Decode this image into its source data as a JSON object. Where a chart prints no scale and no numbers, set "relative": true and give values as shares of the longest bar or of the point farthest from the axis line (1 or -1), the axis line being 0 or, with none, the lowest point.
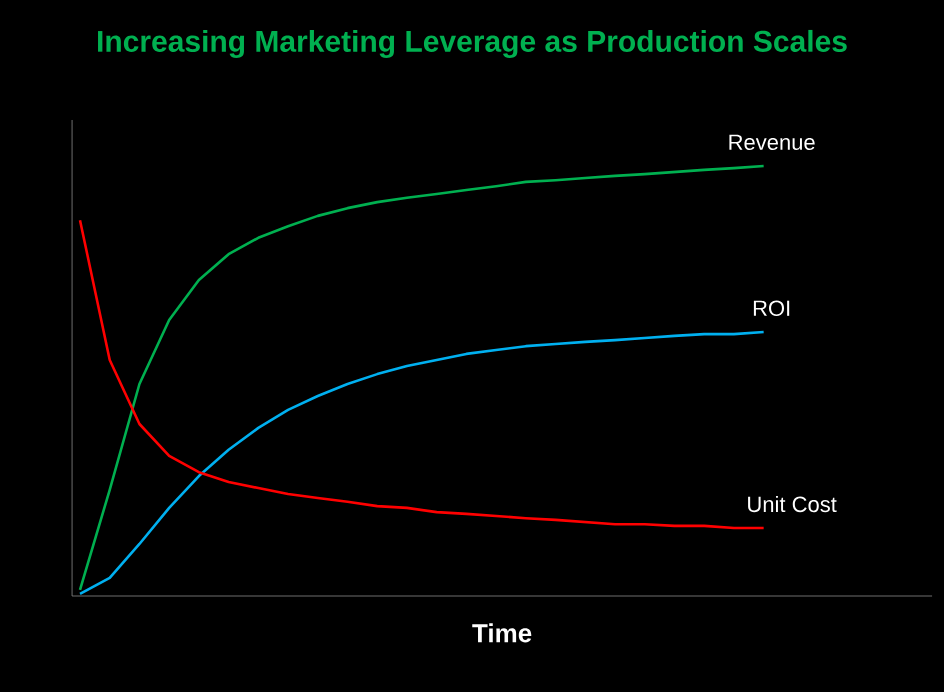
{
  "chart_data": {
    "type": "line",
    "title": "Increasing Marketing Leverage as Production Scales",
    "xlabel": "Time",
    "relative": true,
    "legend": false,
    "marker": "none",
    "categories": [
      null,
      null,
      null,
      null,
      null,
      null,
      null,
      null,
      null,
      null,
      null,
      null,
      null,
      null,
      null,
      null,
      null,
      null,
      null,
      null,
      null,
      null,
      null,
      null
    ],
    "series": [
      {
        "name": "Revenue",
        "color": "#00b050",
        "values": [
          0.014,
          0.247,
          0.493,
          0.642,
          0.735,
          0.795,
          0.833,
          0.86,
          0.884,
          0.902,
          0.916,
          0.926,
          0.935,
          0.944,
          0.953,
          0.963,
          0.967,
          0.972,
          0.977,
          0.981,
          0.986,
          0.991,
          0.995,
          1
        ]
      },
      {
        "name": "ROI",
        "color": "#00b0f0",
        "values": [
          0.005,
          0.042,
          0.121,
          0.205,
          0.279,
          0.34,
          0.391,
          0.433,
          0.465,
          0.493,
          0.516,
          0.535,
          0.549,
          0.563,
          0.572,
          0.581,
          0.586,
          0.591,
          0.595,
          0.6,
          0.605,
          0.609,
          0.609,
          0.614
        ]
      },
      {
        "name": "Unit Cost",
        "color": "#ff0000",
        "values": [
          0.874,
          0.549,
          0.4,
          0.326,
          0.288,
          0.265,
          0.251,
          0.237,
          0.228,
          0.219,
          0.209,
          0.205,
          0.195,
          0.191,
          0.186,
          0.181,
          0.177,
          0.172,
          0.167,
          0.167,
          0.163,
          0.163,
          0.158,
          0.158
        ]
      }
    ]
  }
}
